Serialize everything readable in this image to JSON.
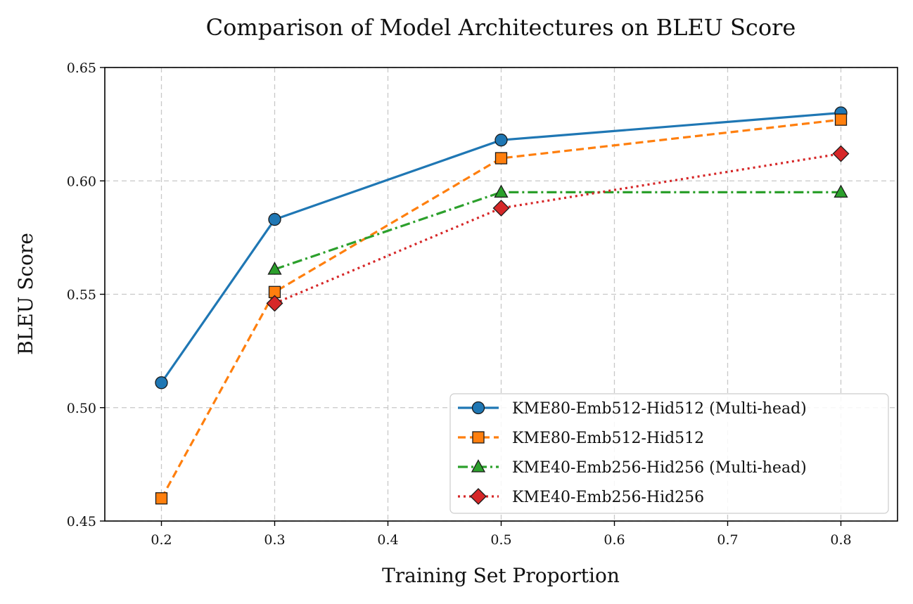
{
  "chart_data": {
    "type": "line",
    "title": "Comparison of Model Architectures on BLEU Score",
    "xlabel": "Training Set Proportion",
    "ylabel": "BLEU Score",
    "xlim": [
      0.15,
      0.85
    ],
    "ylim": [
      0.45,
      0.65
    ],
    "xticks": [
      0.2,
      0.3,
      0.4,
      0.5,
      0.6,
      0.7,
      0.8
    ],
    "xtick_labels": [
      "0.2",
      "0.3",
      "0.4",
      "0.5",
      "0.6",
      "0.7",
      "0.8"
    ],
    "yticks": [
      0.45,
      0.5,
      0.55,
      0.6,
      0.65
    ],
    "ytick_labels": [
      "0.45",
      "0.50",
      "0.55",
      "0.60",
      "0.65"
    ],
    "grid": true,
    "legend_position": "lower-right",
    "series": [
      {
        "name": "KME80-Emb512-Hid512 (Multi-head)",
        "x": [
          0.2,
          0.3,
          0.5,
          0.8
        ],
        "y": [
          0.511,
          0.583,
          0.618,
          0.63
        ],
        "color": "#1f77b4",
        "line_style": "solid",
        "marker": "circle"
      },
      {
        "name": "KME80-Emb512-Hid512",
        "x": [
          0.2,
          0.3,
          0.5,
          0.8
        ],
        "y": [
          0.46,
          0.551,
          0.61,
          0.627
        ],
        "color": "#ff7f0e",
        "line_style": "dashed",
        "marker": "square"
      },
      {
        "name": "KME40-Emb256-Hid256 (Multi-head)",
        "x": [
          0.3,
          0.5,
          0.8
        ],
        "y": [
          0.561,
          0.595,
          0.595
        ],
        "color": "#2ca02c",
        "line_style": "dashdot",
        "marker": "triangle"
      },
      {
        "name": "KME40-Emb256-Hid256",
        "x": [
          0.3,
          0.5,
          0.8
        ],
        "y": [
          0.546,
          0.588,
          0.612
        ],
        "color": "#d62728",
        "line_style": "dotted",
        "marker": "diamond"
      }
    ]
  }
}
